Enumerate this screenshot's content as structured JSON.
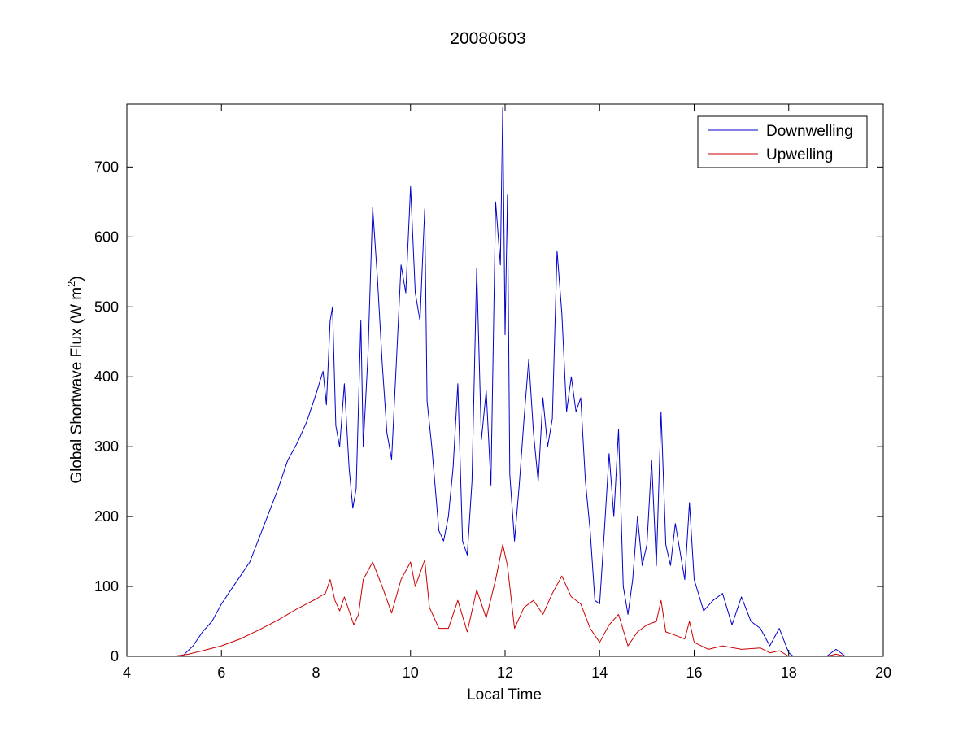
{
  "chart_data": {
    "type": "line",
    "title": "20080603",
    "xlabel": "Local Time",
    "ylabel_main": "Global Shortwave Flux (W m",
    "ylabel_sup": "2",
    "ylabel_close": ")",
    "xlim": [
      4,
      20
    ],
    "ylim": [
      0,
      790
    ],
    "xticks": [
      4,
      6,
      8,
      10,
      12,
      14,
      16,
      18,
      20
    ],
    "yticks": [
      0,
      100,
      200,
      300,
      400,
      500,
      600,
      700
    ],
    "grid": false,
    "legend_position": "top-right",
    "series": [
      {
        "name": "Downwelling",
        "color": "#0000cc",
        "points": [
          [
            4.5,
            0
          ],
          [
            5.0,
            0
          ],
          [
            5.2,
            2
          ],
          [
            5.4,
            15
          ],
          [
            5.6,
            35
          ],
          [
            5.8,
            50
          ],
          [
            6.0,
            75
          ],
          [
            6.2,
            95
          ],
          [
            6.4,
            115
          ],
          [
            6.6,
            135
          ],
          [
            6.8,
            170
          ],
          [
            7.0,
            205
          ],
          [
            7.2,
            240
          ],
          [
            7.4,
            280
          ],
          [
            7.6,
            305
          ],
          [
            7.8,
            335
          ],
          [
            8.0,
            375
          ],
          [
            8.15,
            408
          ],
          [
            8.22,
            360
          ],
          [
            8.3,
            480
          ],
          [
            8.35,
            500
          ],
          [
            8.42,
            330
          ],
          [
            8.5,
            300
          ],
          [
            8.6,
            390
          ],
          [
            8.7,
            270
          ],
          [
            8.78,
            212
          ],
          [
            8.85,
            240
          ],
          [
            8.95,
            480
          ],
          [
            9.0,
            300
          ],
          [
            9.1,
            430
          ],
          [
            9.2,
            642
          ],
          [
            9.3,
            540
          ],
          [
            9.4,
            420
          ],
          [
            9.5,
            320
          ],
          [
            9.6,
            282
          ],
          [
            9.7,
            420
          ],
          [
            9.8,
            560
          ],
          [
            9.9,
            520
          ],
          [
            10.0,
            672
          ],
          [
            10.1,
            520
          ],
          [
            10.2,
            480
          ],
          [
            10.3,
            640
          ],
          [
            10.35,
            365
          ],
          [
            10.45,
            300
          ],
          [
            10.6,
            180
          ],
          [
            10.7,
            165
          ],
          [
            10.8,
            200
          ],
          [
            10.9,
            270
          ],
          [
            11.0,
            390
          ],
          [
            11.1,
            165
          ],
          [
            11.2,
            145
          ],
          [
            11.3,
            250
          ],
          [
            11.4,
            555
          ],
          [
            11.5,
            310
          ],
          [
            11.6,
            380
          ],
          [
            11.7,
            245
          ],
          [
            11.8,
            650
          ],
          [
            11.9,
            560
          ],
          [
            11.95,
            785
          ],
          [
            12.0,
            460
          ],
          [
            12.05,
            660
          ],
          [
            12.1,
            260
          ],
          [
            12.2,
            165
          ],
          [
            12.3,
            245
          ],
          [
            12.4,
            340
          ],
          [
            12.5,
            425
          ],
          [
            12.6,
            320
          ],
          [
            12.7,
            250
          ],
          [
            12.8,
            370
          ],
          [
            12.9,
            300
          ],
          [
            13.0,
            340
          ],
          [
            13.1,
            580
          ],
          [
            13.2,
            490
          ],
          [
            13.3,
            350
          ],
          [
            13.4,
            400
          ],
          [
            13.5,
            350
          ],
          [
            13.6,
            370
          ],
          [
            13.7,
            250
          ],
          [
            13.8,
            180
          ],
          [
            13.9,
            80
          ],
          [
            14.0,
            75
          ],
          [
            14.1,
            180
          ],
          [
            14.2,
            290
          ],
          [
            14.3,
            200
          ],
          [
            14.4,
            325
          ],
          [
            14.5,
            100
          ],
          [
            14.6,
            60
          ],
          [
            14.7,
            110
          ],
          [
            14.8,
            200
          ],
          [
            14.9,
            130
          ],
          [
            15.0,
            160
          ],
          [
            15.1,
            280
          ],
          [
            15.2,
            130
          ],
          [
            15.3,
            350
          ],
          [
            15.4,
            160
          ],
          [
            15.5,
            130
          ],
          [
            15.6,
            190
          ],
          [
            15.7,
            150
          ],
          [
            15.8,
            110
          ],
          [
            15.9,
            220
          ],
          [
            16.0,
            110
          ],
          [
            16.2,
            65
          ],
          [
            16.4,
            80
          ],
          [
            16.6,
            90
          ],
          [
            16.8,
            45
          ],
          [
            17.0,
            85
          ],
          [
            17.2,
            50
          ],
          [
            17.4,
            40
          ],
          [
            17.6,
            15
          ],
          [
            17.8,
            40
          ],
          [
            18.0,
            5
          ],
          [
            18.1,
            0
          ],
          [
            18.8,
            0
          ],
          [
            19.0,
            10
          ],
          [
            19.2,
            0
          ]
        ]
      },
      {
        "name": "Upwelling",
        "color": "#cc0000",
        "points": [
          [
            4.5,
            0
          ],
          [
            5.0,
            0
          ],
          [
            5.3,
            3
          ],
          [
            5.6,
            8
          ],
          [
            6.0,
            15
          ],
          [
            6.4,
            25
          ],
          [
            6.8,
            38
          ],
          [
            7.2,
            52
          ],
          [
            7.6,
            68
          ],
          [
            8.0,
            82
          ],
          [
            8.2,
            90
          ],
          [
            8.3,
            110
          ],
          [
            8.4,
            80
          ],
          [
            8.5,
            65
          ],
          [
            8.6,
            85
          ],
          [
            8.8,
            45
          ],
          [
            8.9,
            60
          ],
          [
            9.0,
            110
          ],
          [
            9.2,
            135
          ],
          [
            9.4,
            100
          ],
          [
            9.6,
            62
          ],
          [
            9.8,
            110
          ],
          [
            10.0,
            135
          ],
          [
            10.1,
            100
          ],
          [
            10.3,
            138
          ],
          [
            10.4,
            70
          ],
          [
            10.6,
            40
          ],
          [
            10.8,
            40
          ],
          [
            11.0,
            80
          ],
          [
            11.2,
            35
          ],
          [
            11.4,
            95
          ],
          [
            11.6,
            55
          ],
          [
            11.8,
            110
          ],
          [
            11.95,
            160
          ],
          [
            12.05,
            130
          ],
          [
            12.2,
            40
          ],
          [
            12.4,
            70
          ],
          [
            12.6,
            80
          ],
          [
            12.8,
            60
          ],
          [
            13.0,
            90
          ],
          [
            13.2,
            115
          ],
          [
            13.4,
            85
          ],
          [
            13.6,
            75
          ],
          [
            13.8,
            40
          ],
          [
            14.0,
            20
          ],
          [
            14.2,
            45
          ],
          [
            14.4,
            60
          ],
          [
            14.6,
            15
          ],
          [
            14.8,
            35
          ],
          [
            15.0,
            45
          ],
          [
            15.2,
            50
          ],
          [
            15.3,
            80
          ],
          [
            15.4,
            35
          ],
          [
            15.6,
            30
          ],
          [
            15.8,
            25
          ],
          [
            15.9,
            50
          ],
          [
            16.0,
            20
          ],
          [
            16.3,
            10
          ],
          [
            16.6,
            15
          ],
          [
            17.0,
            10
          ],
          [
            17.4,
            12
          ],
          [
            17.6,
            5
          ],
          [
            17.8,
            8
          ],
          [
            18.0,
            0
          ],
          [
            18.8,
            0
          ],
          [
            19.0,
            3
          ],
          [
            19.2,
            0
          ]
        ]
      }
    ]
  }
}
